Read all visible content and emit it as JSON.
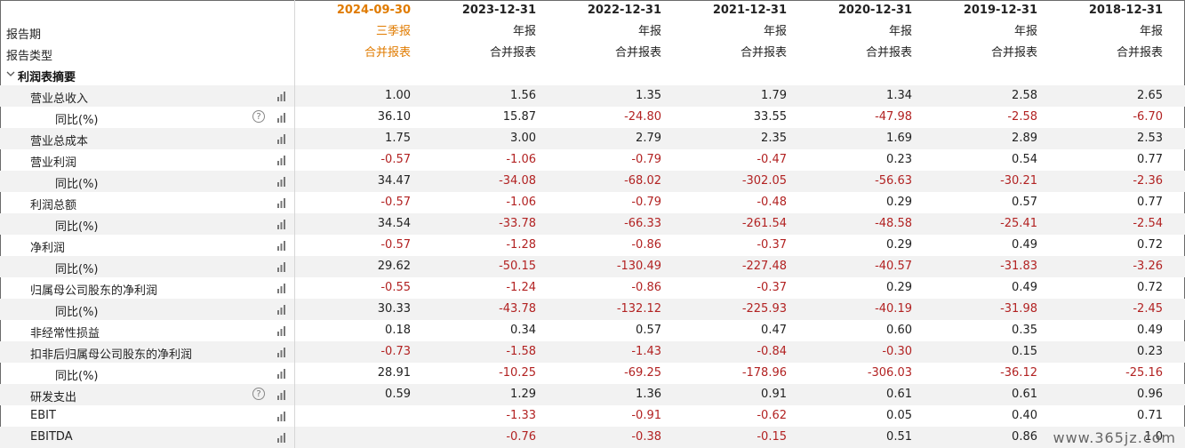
{
  "header": {
    "period_label": "报告期",
    "type_label": "报告类型",
    "columns": [
      {
        "date": "2024-09-30",
        "period": "三季报",
        "type": "合并报表",
        "active": true
      },
      {
        "date": "2023-12-31",
        "period": "年报",
        "type": "合并报表",
        "active": false
      },
      {
        "date": "2022-12-31",
        "period": "年报",
        "type": "合并报表",
        "active": false
      },
      {
        "date": "2021-12-31",
        "period": "年报",
        "type": "合并报表",
        "active": false
      },
      {
        "date": "2020-12-31",
        "period": "年报",
        "type": "合并报表",
        "active": false
      },
      {
        "date": "2019-12-31",
        "period": "年报",
        "type": "合并报表",
        "active": false
      },
      {
        "date": "2018-12-31",
        "period": "年报",
        "type": "合并报表",
        "active": false
      }
    ]
  },
  "section": {
    "title": "利润表摘要",
    "expanded": true
  },
  "rows": [
    {
      "label": "营业总收入",
      "level": 1,
      "help": false,
      "values": [
        "1.00",
        "1.56",
        "1.35",
        "1.79",
        "1.34",
        "2.58",
        "2.65"
      ]
    },
    {
      "label": "同比(%)",
      "level": 2,
      "help": true,
      "values": [
        "36.10",
        "15.87",
        "-24.80",
        "33.55",
        "-47.98",
        "-2.58",
        "-6.70"
      ]
    },
    {
      "label": "营业总成本",
      "level": 1,
      "help": false,
      "values": [
        "1.75",
        "3.00",
        "2.79",
        "2.35",
        "1.69",
        "2.89",
        "2.53"
      ]
    },
    {
      "label": "营业利润",
      "level": 1,
      "help": false,
      "values": [
        "-0.57",
        "-1.06",
        "-0.79",
        "-0.47",
        "0.23",
        "0.54",
        "0.77"
      ]
    },
    {
      "label": "同比(%)",
      "level": 2,
      "help": false,
      "values": [
        "34.47",
        "-34.08",
        "-68.02",
        "-302.05",
        "-56.63",
        "-30.21",
        "-2.36"
      ]
    },
    {
      "label": "利润总额",
      "level": 1,
      "help": false,
      "values": [
        "-0.57",
        "-1.06",
        "-0.79",
        "-0.48",
        "0.29",
        "0.57",
        "0.77"
      ]
    },
    {
      "label": "同比(%)",
      "level": 2,
      "help": false,
      "values": [
        "34.54",
        "-33.78",
        "-66.33",
        "-261.54",
        "-48.58",
        "-25.41",
        "-2.54"
      ]
    },
    {
      "label": "净利润",
      "level": 1,
      "help": false,
      "values": [
        "-0.57",
        "-1.28",
        "-0.86",
        "-0.37",
        "0.29",
        "0.49",
        "0.72"
      ]
    },
    {
      "label": "同比(%)",
      "level": 2,
      "help": false,
      "values": [
        "29.62",
        "-50.15",
        "-130.49",
        "-227.48",
        "-40.57",
        "-31.83",
        "-3.26"
      ]
    },
    {
      "label": "归属母公司股东的净利润",
      "level": 1,
      "help": false,
      "values": [
        "-0.55",
        "-1.24",
        "-0.86",
        "-0.37",
        "0.29",
        "0.49",
        "0.72"
      ]
    },
    {
      "label": "同比(%)",
      "level": 2,
      "help": false,
      "values": [
        "30.33",
        "-43.78",
        "-132.12",
        "-225.93",
        "-40.19",
        "-31.98",
        "-2.45"
      ]
    },
    {
      "label": "非经常性损益",
      "level": 1,
      "help": false,
      "values": [
        "0.18",
        "0.34",
        "0.57",
        "0.47",
        "0.60",
        "0.35",
        "0.49"
      ]
    },
    {
      "label": "扣非后归属母公司股东的净利润",
      "level": 1,
      "help": false,
      "values": [
        "-0.73",
        "-1.58",
        "-1.43",
        "-0.84",
        "-0.30",
        "0.15",
        "0.23"
      ]
    },
    {
      "label": "同比(%)",
      "level": 2,
      "help": false,
      "values": [
        "28.91",
        "-10.25",
        "-69.25",
        "-178.96",
        "-306.03",
        "-36.12",
        "-25.16"
      ]
    },
    {
      "label": "研发支出",
      "level": 1,
      "help": true,
      "values": [
        "0.59",
        "1.29",
        "1.36",
        "0.91",
        "0.61",
        "0.61",
        "0.96"
      ]
    },
    {
      "label": "EBIT",
      "level": 1,
      "help": false,
      "values": [
        "",
        "-1.33",
        "-0.91",
        "-0.62",
        "0.05",
        "0.40",
        "0.71"
      ]
    },
    {
      "label": "EBITDA",
      "level": 1,
      "help": false,
      "values": [
        "",
        "-0.76",
        "-0.38",
        "-0.15",
        "0.51",
        "0.86",
        "1.0"
      ]
    }
  ],
  "help_glyph": "?",
  "icons": {
    "chart": "bar-chart-icon",
    "help": "question-circle-icon",
    "caret": "chevron-down-icon"
  },
  "colors": {
    "negative": "#b22222",
    "active": "#e07b00",
    "alt_row": "#f2f2f2"
  },
  "watermark": "www.365jz.com"
}
